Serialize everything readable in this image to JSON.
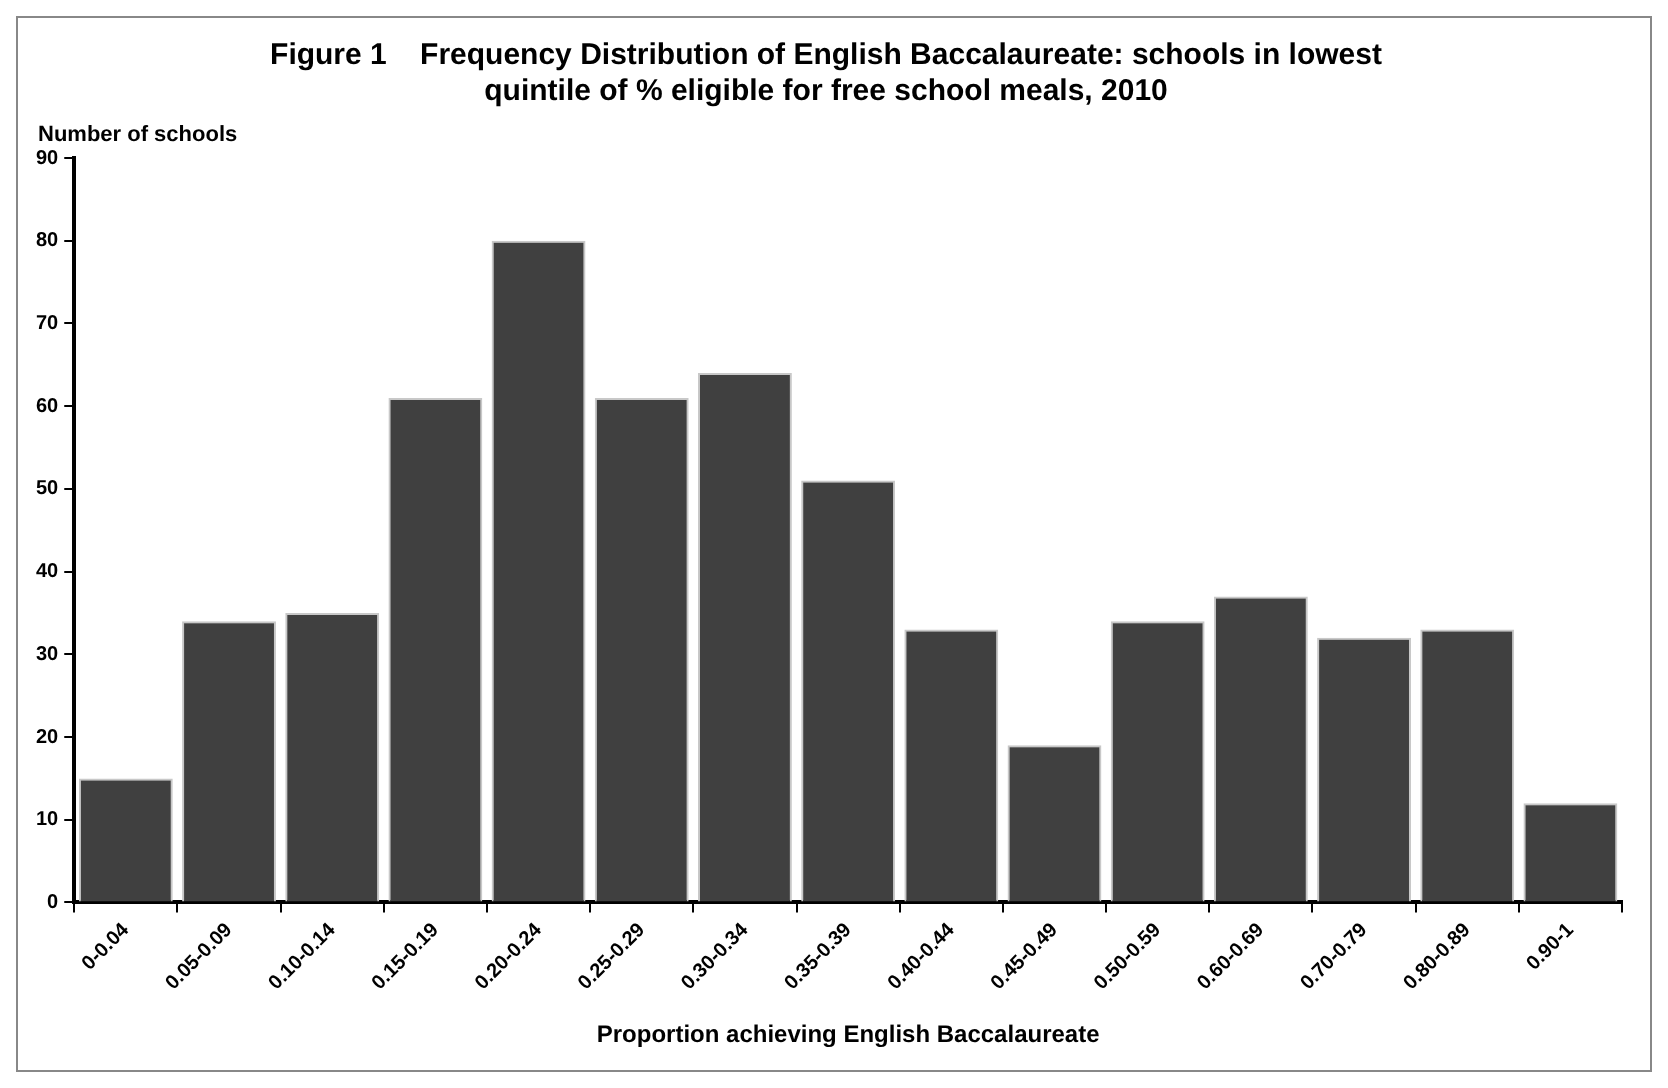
{
  "chart_data": {
    "type": "bar",
    "title": [
      "Figure 1    Frequency Distribution of English Baccalaureate: schools in lowest",
      "quintile of % eligible for free school meals, 2010"
    ],
    "xlabel": "Proportion achieving English Baccalaureate",
    "ylabel": "Number of schools",
    "categories": [
      "0-0.04",
      "0.05-0.09",
      "0.10-0.14",
      "0.15-0.19",
      "0.20-0.24",
      "0.25-0.29",
      "0.30-0.34",
      "0.35-0.39",
      "0.40-0.44",
      "0.45-0.49",
      "0.50-0.59",
      "0.60-0.69",
      "0.70-0.79",
      "0.80-0.89",
      "0.90-1"
    ],
    "values": [
      15,
      34,
      35,
      61,
      80,
      61,
      64,
      51,
      33,
      19,
      34,
      37,
      32,
      33,
      12
    ],
    "color": "#404040",
    "ylim": [
      0,
      90
    ],
    "yticks": [
      0,
      10,
      20,
      30,
      40,
      50,
      60,
      70,
      80,
      90
    ],
    "grid": false,
    "legend": false
  }
}
